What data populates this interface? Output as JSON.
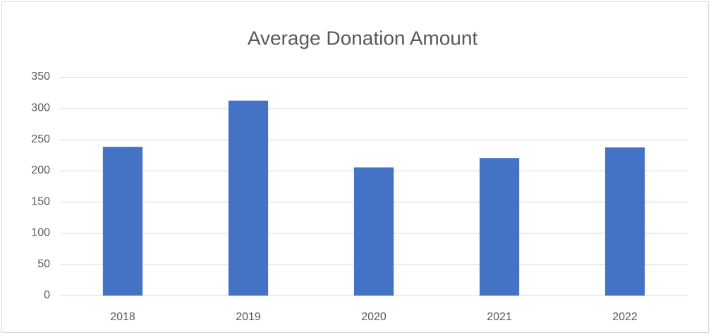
{
  "chart_data": {
    "type": "bar",
    "title": "Average Donation Amount",
    "categories": [
      "2018",
      "2019",
      "2020",
      "2021",
      "2022"
    ],
    "values": [
      238,
      312,
      205,
      220,
      237
    ],
    "color": "#4472c4",
    "ylim": [
      0,
      350
    ],
    "yticks": [
      0,
      50,
      100,
      150,
      200,
      250,
      300,
      350
    ],
    "grid": true
  }
}
